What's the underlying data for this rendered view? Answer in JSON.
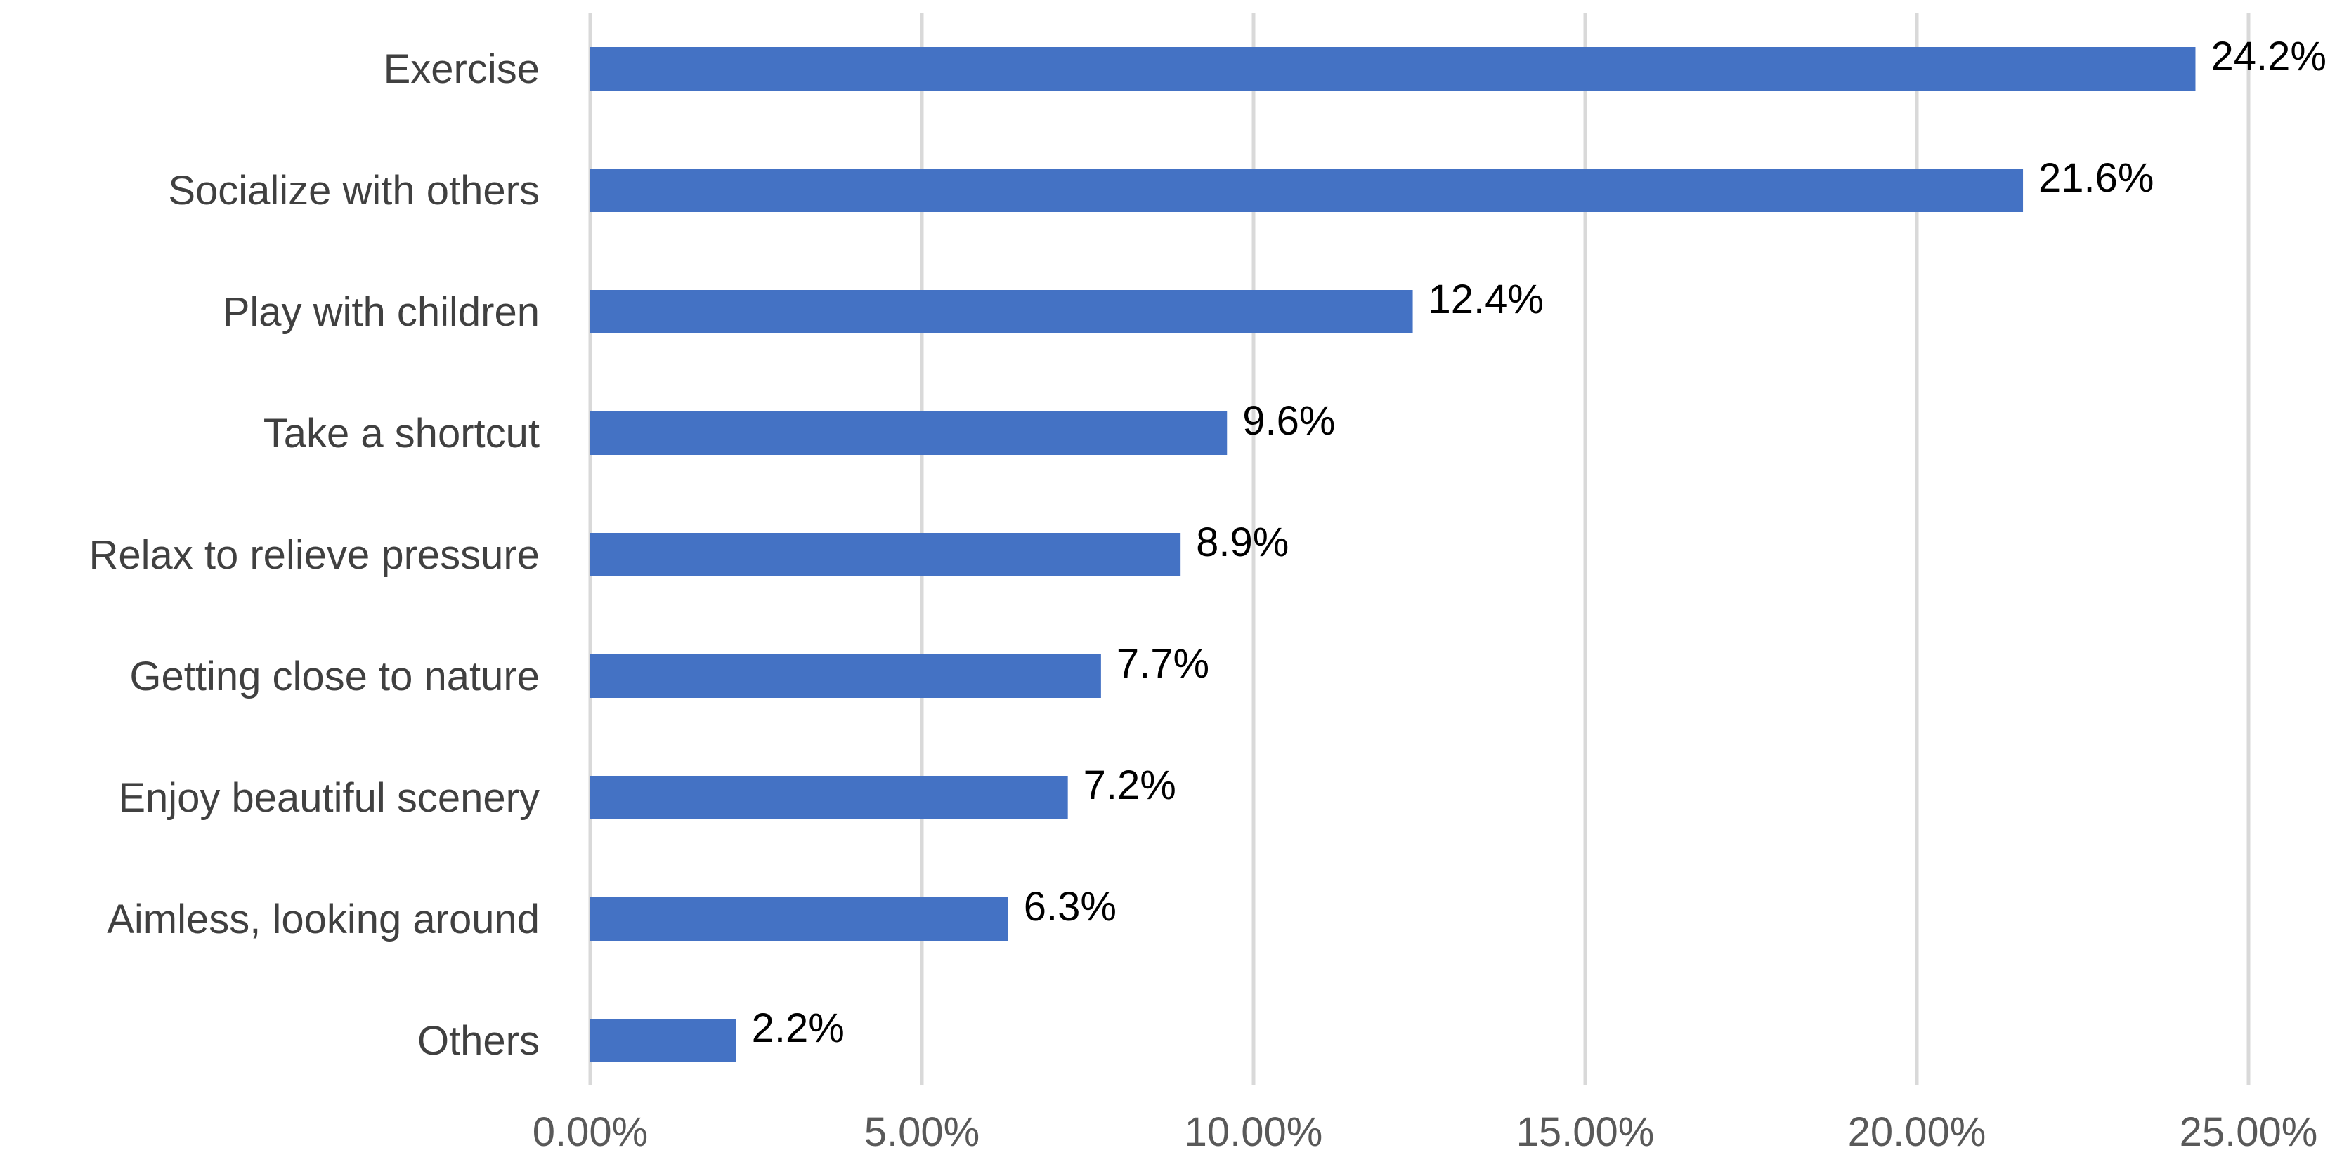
{
  "chart_data": {
    "type": "bar",
    "orientation": "horizontal",
    "title": "",
    "xlabel": "",
    "ylabel": "",
    "categories": [
      "Exercise",
      "Socialize with others",
      "Play with children",
      "Take a shortcut",
      "Relax to relieve pressure",
      "Getting close to nature",
      "Enjoy beautiful scenery",
      "Aimless, looking around",
      "Others"
    ],
    "values": [
      24.2,
      21.6,
      12.4,
      9.6,
      8.9,
      7.7,
      7.2,
      6.3,
      2.2
    ],
    "data_labels": [
      "24.2%",
      "21.6%",
      "12.4%",
      "9.6%",
      "8.9%",
      "7.7%",
      "7.2%",
      "6.3%",
      "2.2%"
    ],
    "xlim": [
      0,
      25
    ],
    "xticks": [
      0,
      5,
      10,
      15,
      20,
      25
    ],
    "xtick_labels": [
      "0.00%",
      "5.00%",
      "10.00%",
      "15.00%",
      "20.00%",
      "25.00%"
    ],
    "grid": true,
    "legend": "none",
    "bar_color": "#4472C4",
    "grid_color": "#D9D9D9"
  }
}
